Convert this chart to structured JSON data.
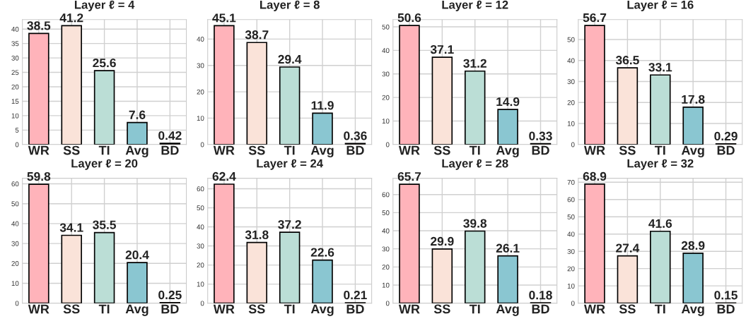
{
  "chart_data": [
    {
      "type": "bar",
      "title": "Layer ℓ = 4",
      "categories": [
        "WR",
        "SS",
        "TI",
        "Avg",
        "BD"
      ],
      "values": [
        38.5,
        41.2,
        25.6,
        7.6,
        0.42
      ],
      "colors": [
        "#ffb3ba",
        "#fae3d9",
        "#bbded6",
        "#8ac6d1",
        "#c4a88f"
      ],
      "ylim": [
        0,
        43.3
      ],
      "yticks": [
        0,
        5,
        10,
        15,
        20,
        25,
        30,
        35,
        40
      ],
      "grid": true,
      "data_labels": true
    },
    {
      "type": "bar",
      "title": "Layer ℓ = 8",
      "categories": [
        "WR",
        "SS",
        "TI",
        "Avg",
        "BD"
      ],
      "values": [
        45.1,
        38.7,
        29.4,
        11.9,
        0.36
      ],
      "colors": [
        "#ffb3ba",
        "#fae3d9",
        "#bbded6",
        "#8ac6d1",
        "#c4a88f"
      ],
      "ylim": [
        0,
        47.4
      ],
      "yticks": [
        0,
        10,
        20,
        30,
        40
      ],
      "grid": true,
      "data_labels": true
    },
    {
      "type": "bar",
      "title": "Layer ℓ = 12",
      "categories": [
        "WR",
        "SS",
        "TI",
        "Avg",
        "BD"
      ],
      "values": [
        50.6,
        37.1,
        31.2,
        14.9,
        0.33
      ],
      "colors": [
        "#ffb3ba",
        "#fae3d9",
        "#bbded6",
        "#8ac6d1",
        "#c4a88f"
      ],
      "ylim": [
        0,
        53.1
      ],
      "yticks": [
        0,
        10,
        20,
        30,
        40,
        50
      ],
      "grid": true,
      "data_labels": true
    },
    {
      "type": "bar",
      "title": "Layer ℓ = 16",
      "categories": [
        "WR",
        "SS",
        "TI",
        "Avg",
        "BD"
      ],
      "values": [
        56.7,
        36.5,
        33.1,
        17.8,
        0.29
      ],
      "colors": [
        "#ffb3ba",
        "#fae3d9",
        "#bbded6",
        "#8ac6d1",
        "#c4a88f"
      ],
      "ylim": [
        0,
        59.5
      ],
      "yticks": [
        0,
        10,
        20,
        30,
        40,
        50
      ],
      "grid": true,
      "data_labels": true
    },
    {
      "type": "bar",
      "title": "Layer ℓ = 20",
      "categories": [
        "WR",
        "SS",
        "TI",
        "Avg",
        "BD"
      ],
      "values": [
        59.8,
        34.1,
        35.5,
        20.4,
        0.25
      ],
      "colors": [
        "#ffb3ba",
        "#fae3d9",
        "#bbded6",
        "#8ac6d1",
        "#c4a88f"
      ],
      "ylim": [
        0,
        62.8
      ],
      "yticks": [
        0,
        10,
        20,
        30,
        40,
        50,
        60
      ],
      "grid": true,
      "data_labels": true
    },
    {
      "type": "bar",
      "title": "Layer ℓ = 24",
      "categories": [
        "WR",
        "SS",
        "TI",
        "Avg",
        "BD"
      ],
      "values": [
        62.4,
        31.8,
        37.2,
        22.6,
        0.21
      ],
      "colors": [
        "#ffb3ba",
        "#fae3d9",
        "#bbded6",
        "#8ac6d1",
        "#c4a88f"
      ],
      "ylim": [
        0,
        65.5
      ],
      "yticks": [
        0,
        10,
        20,
        30,
        40,
        50,
        60
      ],
      "grid": true,
      "data_labels": true
    },
    {
      "type": "bar",
      "title": "Layer ℓ = 28",
      "categories": [
        "WR",
        "SS",
        "TI",
        "Avg",
        "BD"
      ],
      "values": [
        65.7,
        29.9,
        39.8,
        26.1,
        0.18
      ],
      "colors": [
        "#ffb3ba",
        "#fae3d9",
        "#bbded6",
        "#8ac6d1",
        "#c4a88f"
      ],
      "ylim": [
        0,
        69.0
      ],
      "yticks": [
        0,
        10,
        20,
        30,
        40,
        50,
        60
      ],
      "grid": true,
      "data_labels": true
    },
    {
      "type": "bar",
      "title": "Layer ℓ = 32",
      "categories": [
        "WR",
        "SS",
        "TI",
        "Avg",
        "BD"
      ],
      "values": [
        68.9,
        27.4,
        41.6,
        28.9,
        0.15
      ],
      "colors": [
        "#ffb3ba",
        "#fae3d9",
        "#bbded6",
        "#8ac6d1",
        "#c4a88f"
      ],
      "ylim": [
        0,
        72.3
      ],
      "yticks": [
        0,
        10,
        20,
        30,
        40,
        50,
        60,
        70
      ],
      "grid": true,
      "data_labels": true
    }
  ]
}
